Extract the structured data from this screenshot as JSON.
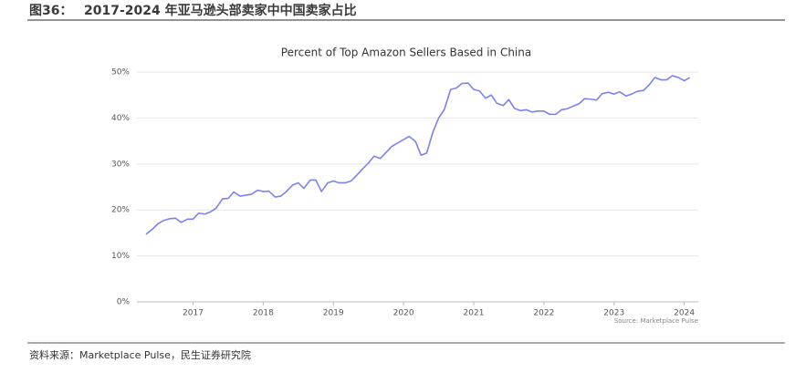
{
  "header": {
    "label": "图36：",
    "title": "2017-2024 年亚马逊头部卖家中中国卖家占比"
  },
  "footer": {
    "source": "资料来源：Marketplace Pulse，民生证券研究院"
  },
  "chart_data": {
    "type": "line",
    "title": "Percent of Top Amazon Sellers Based in China",
    "annotation": "Source: Marketplace Pulse",
    "color": "#7b83eb",
    "grid": true,
    "x": [
      2016.33,
      2016.42,
      2016.5,
      2016.58,
      2016.67,
      2016.75,
      2016.83,
      2016.92,
      2017.0,
      2017.08,
      2017.17,
      2017.25,
      2017.33,
      2017.42,
      2017.5,
      2017.58,
      2017.67,
      2017.75,
      2017.83,
      2017.92,
      2018.0,
      2018.08,
      2018.17,
      2018.25,
      2018.33,
      2018.42,
      2018.5,
      2018.58,
      2018.67,
      2018.75,
      2018.83,
      2018.92,
      2019.0,
      2019.08,
      2019.17,
      2019.25,
      2019.33,
      2019.42,
      2019.5,
      2019.58,
      2019.67,
      2019.75,
      2019.83,
      2019.92,
      2020.0,
      2020.08,
      2020.17,
      2020.25,
      2020.33,
      2020.42,
      2020.5,
      2020.58,
      2020.67,
      2020.75,
      2020.83,
      2020.92,
      2021.0,
      2021.08,
      2021.17,
      2021.25,
      2021.33,
      2021.42,
      2021.5,
      2021.58,
      2021.67,
      2021.75,
      2021.83,
      2021.92,
      2022.0,
      2022.08,
      2022.17,
      2022.25,
      2022.33,
      2022.42,
      2022.5,
      2022.58,
      2022.67,
      2022.75,
      2022.83,
      2022.92,
      2023.0,
      2023.08,
      2023.17,
      2023.25,
      2023.33,
      2023.42,
      2023.5,
      2023.58,
      2023.67,
      2023.75,
      2023.83,
      2023.92,
      2024.0,
      2024.08
    ],
    "values": [
      14.7,
      15.8,
      17.0,
      17.7,
      18.1,
      18.2,
      17.3,
      18.0,
      18.0,
      19.3,
      19.1,
      19.6,
      20.4,
      22.4,
      22.5,
      23.9,
      23.0,
      23.2,
      23.4,
      24.3,
      24.0,
      24.1,
      22.8,
      23.0,
      24.0,
      25.4,
      25.9,
      24.7,
      26.5,
      26.5,
      24.0,
      25.9,
      26.3,
      25.9,
      25.9,
      26.3,
      27.5,
      29.0,
      30.2,
      31.7,
      31.2,
      32.5,
      33.8,
      34.6,
      35.3,
      36.0,
      34.9,
      31.9,
      32.4,
      37.0,
      40.0,
      41.8,
      46.2,
      46.5,
      47.5,
      47.6,
      46.2,
      45.9,
      44.3,
      45.0,
      43.2,
      42.7,
      44.0,
      42.1,
      41.6,
      41.8,
      41.3,
      41.5,
      41.5,
      40.8,
      40.8,
      41.8,
      42.0,
      42.6,
      43.1,
      44.2,
      44.1,
      43.9,
      45.3,
      45.6,
      45.2,
      45.7,
      44.8,
      45.2,
      45.8,
      46.0,
      47.2,
      48.8,
      48.3,
      48.3,
      49.2,
      48.8,
      48.1,
      48.8
    ],
    "xlim": [
      2016.2,
      2024.2
    ],
    "xticks": [
      2017,
      2018,
      2019,
      2020,
      2021,
      2022,
      2023,
      2024
    ],
    "ylim": [
      0,
      50
    ],
    "yticks": [
      {
        "value": 0,
        "label": "0%"
      },
      {
        "value": 10,
        "label": "10%"
      },
      {
        "value": 20,
        "label": "20%"
      },
      {
        "value": 30,
        "label": "30%"
      },
      {
        "value": 40,
        "label": "40%"
      },
      {
        "value": 50,
        "label": "50%"
      }
    ]
  }
}
